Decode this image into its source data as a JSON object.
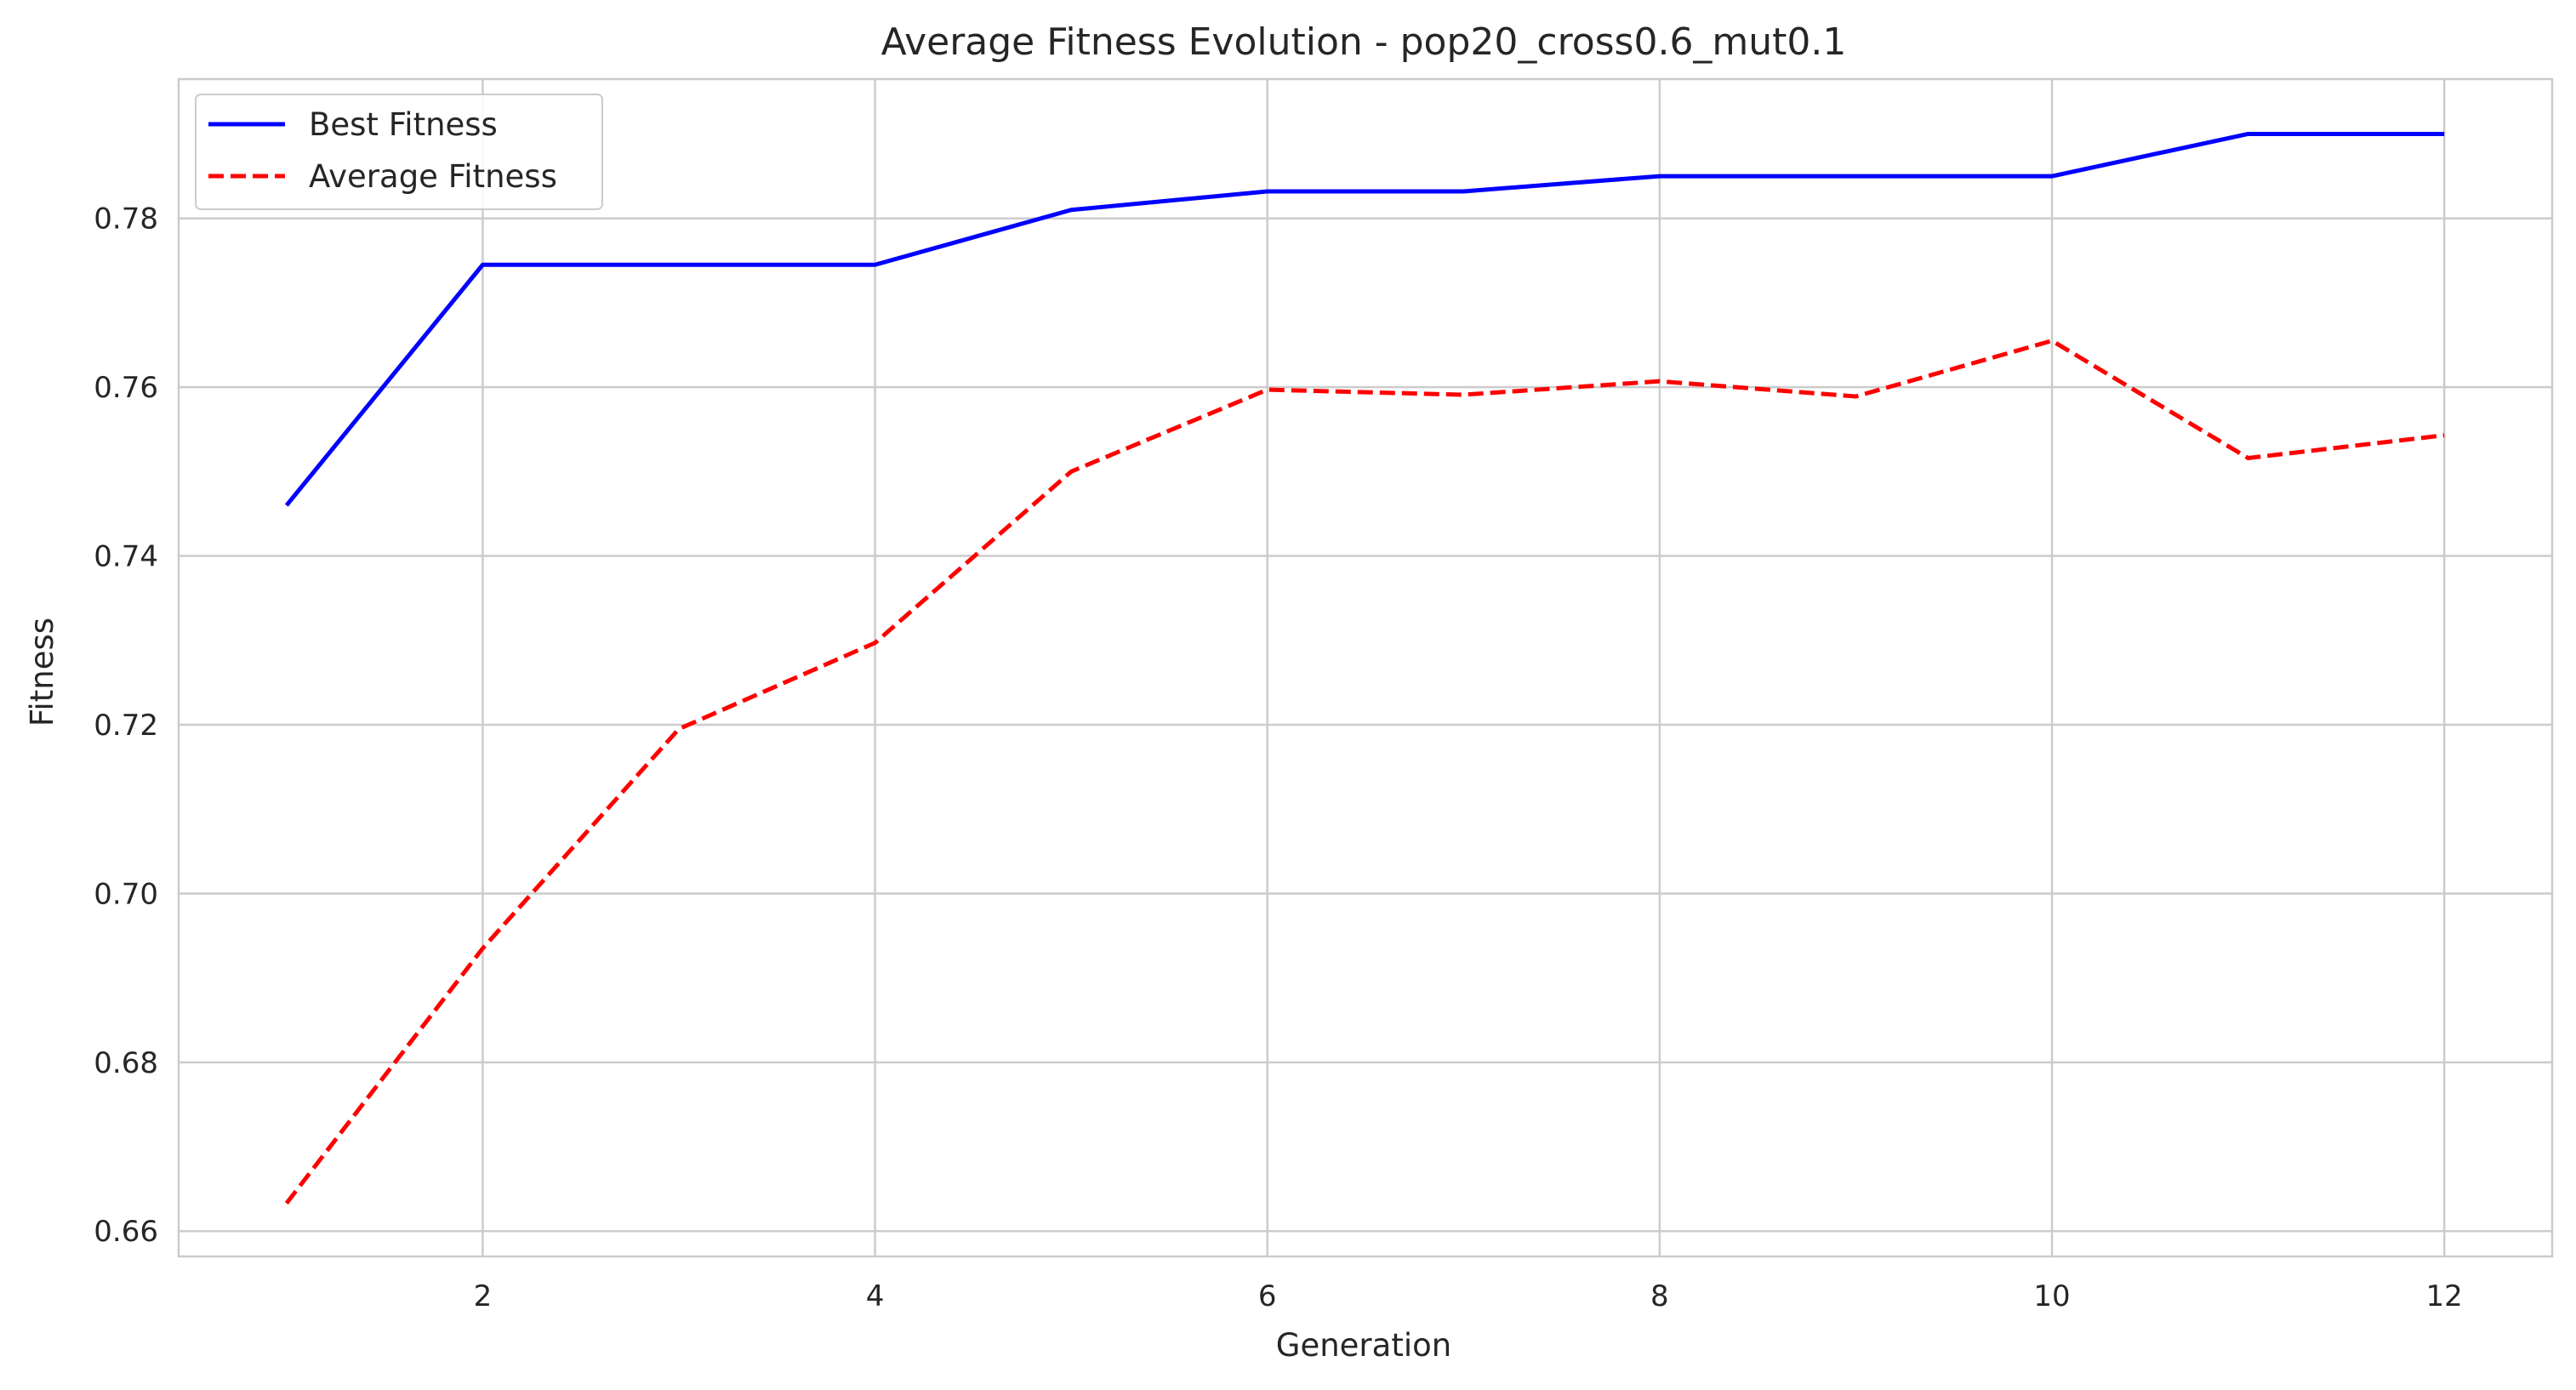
{
  "chart_data": {
    "type": "line",
    "title": "Average Fitness Evolution - pop20_cross0.6_mut0.1",
    "xlabel": "Generation",
    "ylabel": "Fitness",
    "xlim": [
      0.45,
      12.55
    ],
    "ylim": [
      0.657,
      0.7965
    ],
    "xticks": [
      2,
      4,
      6,
      8,
      10,
      12
    ],
    "yticks": [
      0.66,
      0.68,
      0.7,
      0.72,
      0.74,
      0.76,
      0.78
    ],
    "xtick_labels": [
      "2",
      "4",
      "6",
      "8",
      "10",
      "12"
    ],
    "ytick_labels": [
      "0.66",
      "0.68",
      "0.70",
      "0.72",
      "0.74",
      "0.76",
      "0.78"
    ],
    "grid": true,
    "legend_position": "top-left",
    "x": [
      1,
      2,
      3,
      4,
      5,
      6,
      7,
      8,
      9,
      10,
      11,
      12
    ],
    "series": [
      {
        "name": "Best Fitness",
        "color": "#0000ff",
        "style": "solid",
        "values": [
          0.746,
          0.7745,
          0.7745,
          0.7745,
          0.781,
          0.7832,
          0.7832,
          0.785,
          0.785,
          0.785,
          0.79,
          0.79
        ]
      },
      {
        "name": "Average Fitness",
        "color": "#ff0000",
        "style": "dashed",
        "values": [
          0.6633,
          0.6935,
          0.7195,
          0.7297,
          0.75,
          0.7597,
          0.7591,
          0.7607,
          0.7589,
          0.7655,
          0.7516,
          0.7543
        ]
      }
    ]
  }
}
